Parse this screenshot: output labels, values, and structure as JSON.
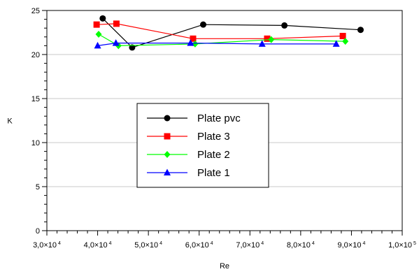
{
  "chart_data": {
    "type": "line",
    "xlabel": "Re",
    "ylabel": "K",
    "xlim": [
      30000,
      100000
    ],
    "ylim": [
      0,
      25
    ],
    "x_ticks": [
      {
        "value": 30000,
        "mant": "3,0×10",
        "exp": "4"
      },
      {
        "value": 40000,
        "mant": "4,0×10",
        "exp": "4"
      },
      {
        "value": 50000,
        "mant": "5,0×10",
        "exp": "4"
      },
      {
        "value": 60000,
        "mant": "6,0×10",
        "exp": "4"
      },
      {
        "value": 70000,
        "mant": "7,0×10",
        "exp": "4"
      },
      {
        "value": 80000,
        "mant": "8,0×10",
        "exp": "4"
      },
      {
        "value": 90000,
        "mant": "9,0×10",
        "exp": "4"
      },
      {
        "value": 100000,
        "mant": "1,0×10",
        "exp": "5"
      }
    ],
    "y_ticks": [
      {
        "value": 0,
        "label": "0"
      },
      {
        "value": 5,
        "label": "5"
      },
      {
        "value": 10,
        "label": "10"
      },
      {
        "value": 15,
        "label": "15"
      },
      {
        "value": 20,
        "label": "20"
      },
      {
        "value": 25,
        "label": "25"
      }
    ],
    "grid": "horizontal",
    "legend": "center",
    "series": [
      {
        "name": "Plate pvc",
        "color": "#000000",
        "marker": "circle",
        "x": [
          41000,
          46800,
          60800,
          76800,
          91800
        ],
        "y": [
          24.1,
          20.8,
          23.4,
          23.3,
          22.8
        ]
      },
      {
        "name": "Plate 3",
        "color": "#ff0000",
        "marker": "square",
        "x": [
          39800,
          43700,
          58800,
          73400,
          88300
        ],
        "y": [
          23.4,
          23.5,
          21.8,
          21.8,
          22.1
        ]
      },
      {
        "name": "Plate 2",
        "color": "#00ff00",
        "marker": "diamond",
        "x": [
          40200,
          44100,
          59200,
          74200,
          88800
        ],
        "y": [
          22.3,
          21.0,
          21.2,
          21.7,
          21.5
        ]
      },
      {
        "name": "Plate 1",
        "color": "#0000ff",
        "marker": "triangle",
        "x": [
          40000,
          43600,
          58300,
          72400,
          87000
        ],
        "y": [
          21.0,
          21.3,
          21.3,
          21.2,
          21.2
        ]
      }
    ]
  }
}
